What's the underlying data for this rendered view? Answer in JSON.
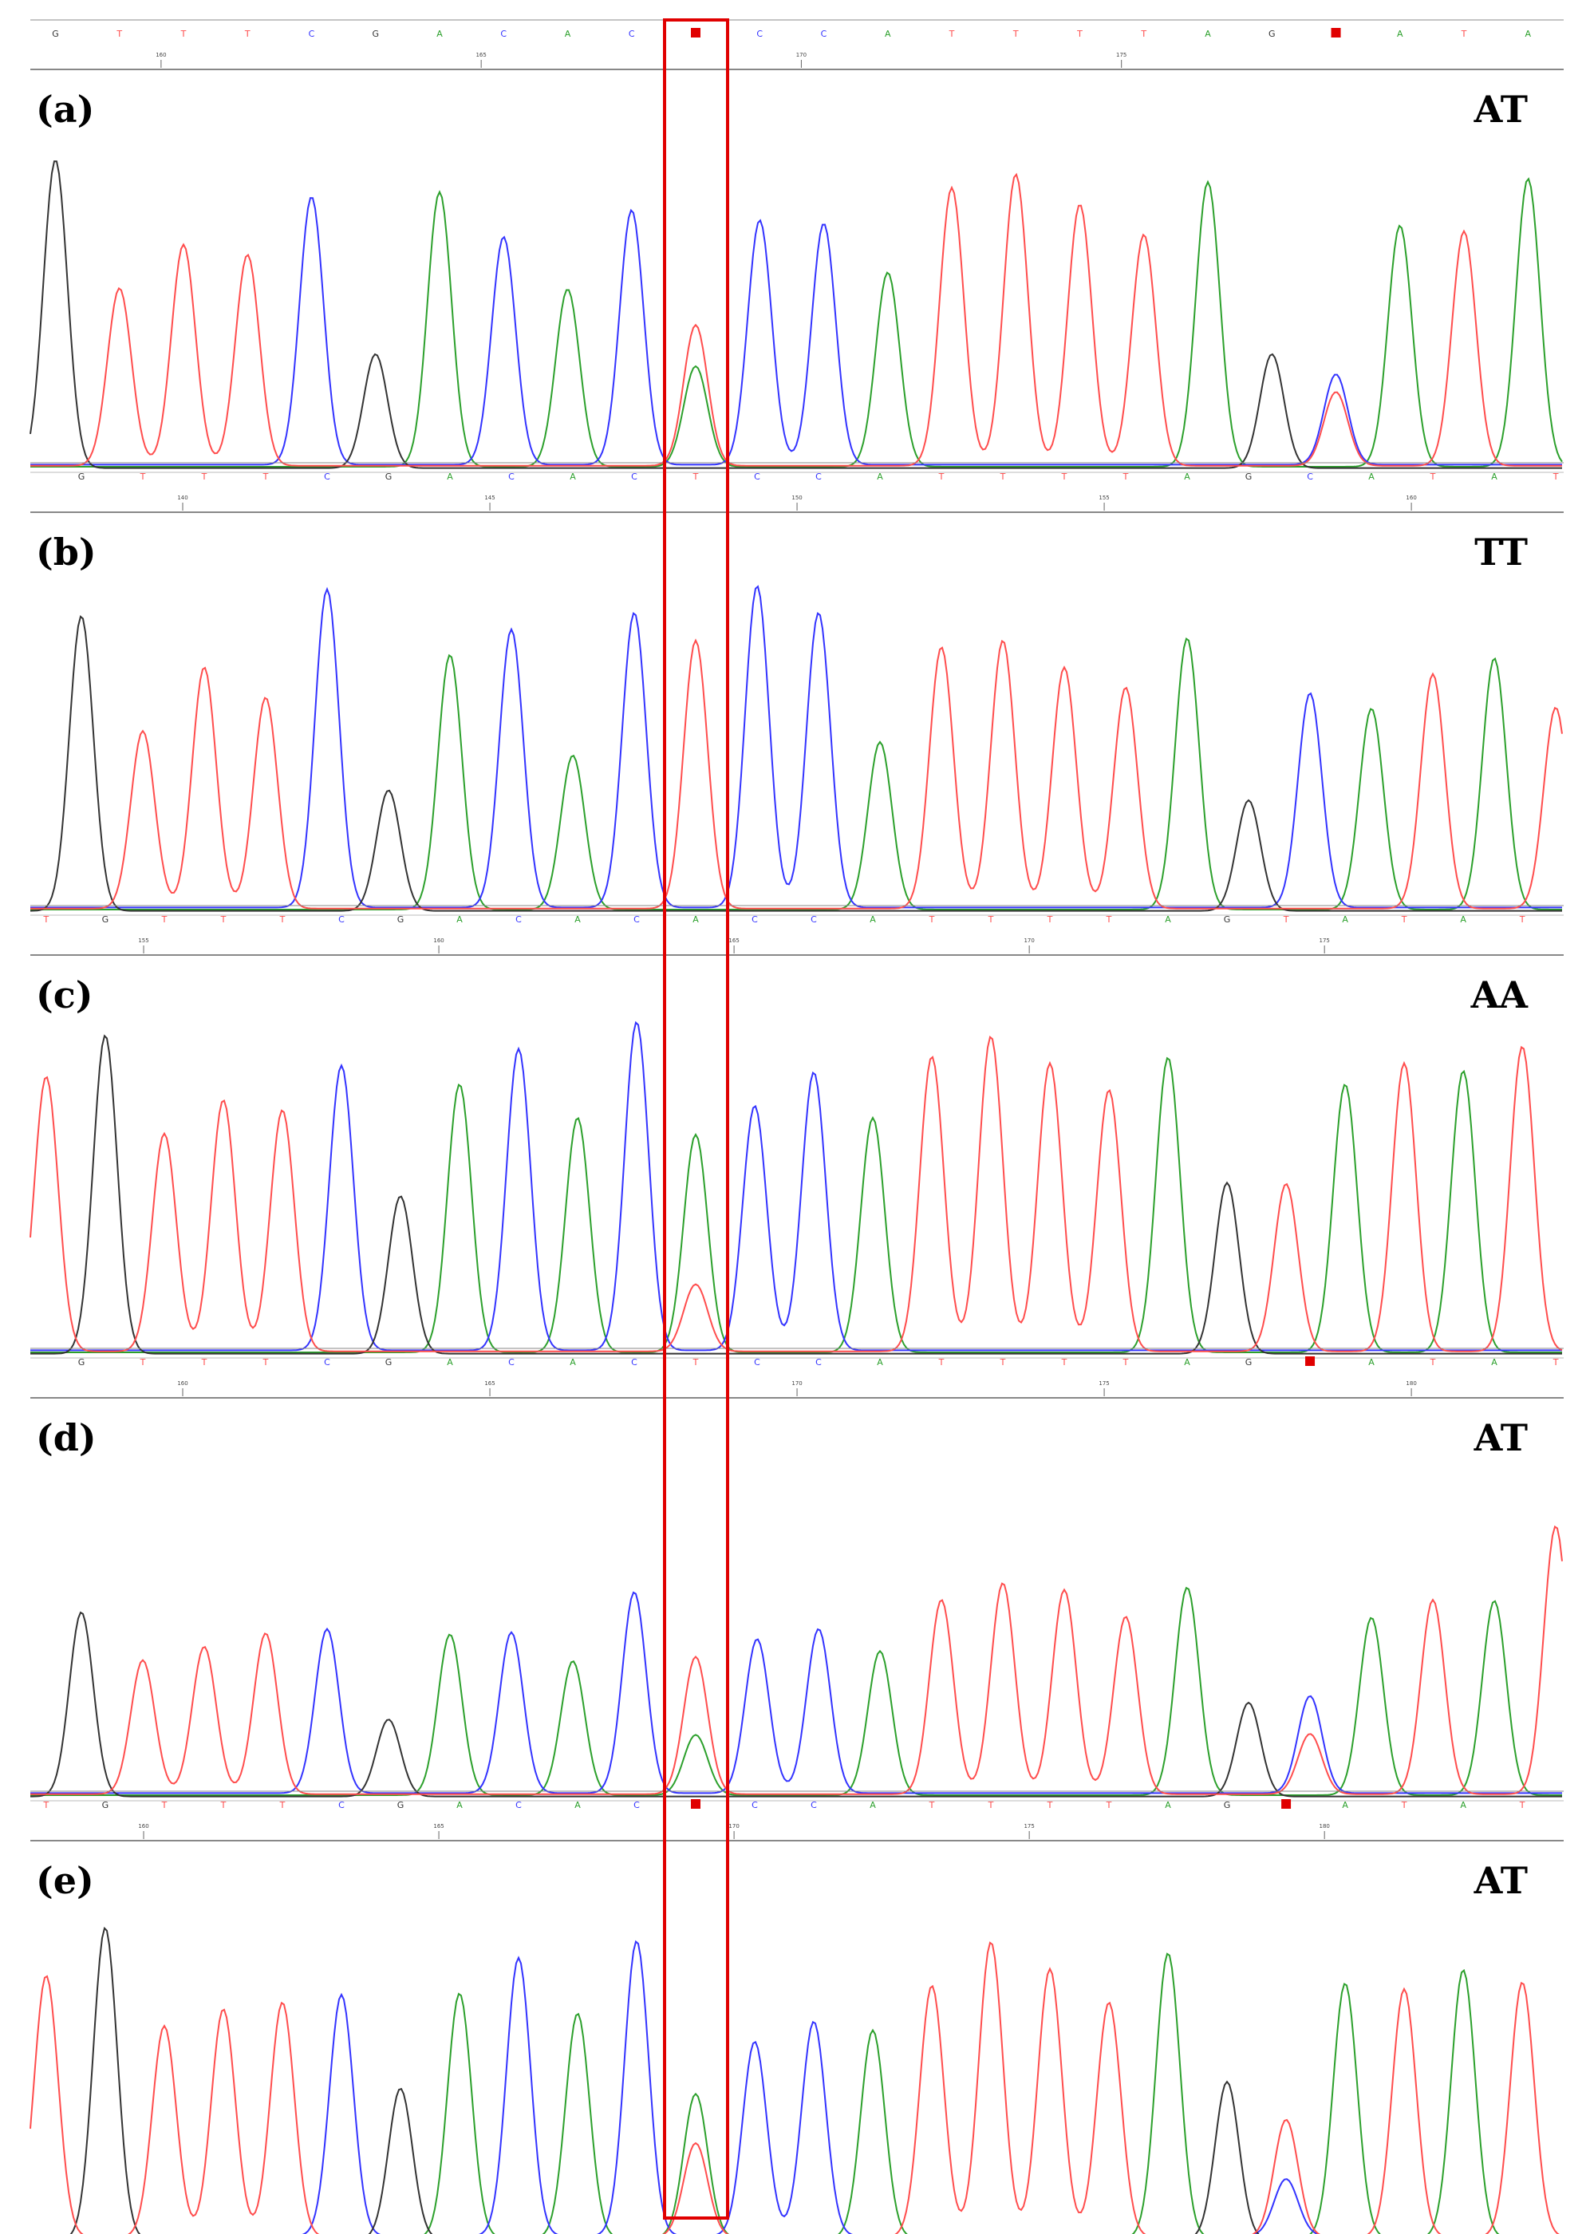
{
  "colors": {
    "A": "#2ca02c",
    "C": "#3333ff",
    "G": "#333333",
    "T": "#ff4d4d",
    "N": "#e00000",
    "highlight": "#e00000"
  },
  "highlight_box": {
    "label": "snp-highlight"
  },
  "panels": [
    {
      "label": "(a)",
      "genotype": "AT",
      "bases": [
        "G",
        "T",
        "T",
        "T",
        "C",
        "G",
        "A",
        "C",
        "A",
        "C",
        "N",
        "C",
        "C",
        "A",
        "T",
        "T",
        "T",
        "T",
        "A",
        "G",
        "N",
        "A",
        "T",
        "A"
      ],
      "ticks": [
        "160",
        "165",
        "170",
        "175"
      ],
      "peaks": [
        [
          "G",
          0.92
        ],
        [
          "T",
          0.53
        ],
        [
          "T",
          0.66
        ],
        [
          "T",
          0.63
        ],
        [
          "C",
          0.8
        ],
        [
          "G",
          0.34
        ],
        [
          "A",
          0.82
        ],
        [
          "C",
          0.68
        ],
        [
          "A",
          0.53
        ],
        [
          "C",
          0.76
        ],
        [
          "T",
          0.42
        ],
        [
          "C",
          0.73
        ],
        [
          "C",
          0.72
        ],
        [
          "A",
          0.58
        ],
        [
          "T",
          0.83
        ],
        [
          "T",
          0.87
        ],
        [
          "T",
          0.78
        ],
        [
          "T",
          0.69
        ],
        [
          "A",
          0.85
        ],
        [
          "G",
          0.34
        ],
        [
          "C",
          0.27
        ],
        [
          "A",
          0.72
        ],
        [
          "T",
          0.7
        ],
        [
          "A",
          0.86
        ]
      ],
      "secondary": [
        [
          "A",
          10,
          0.3
        ],
        [
          "T",
          20,
          0.22
        ]
      ]
    },
    {
      "label": "(b)",
      "genotype": "TT",
      "bases": [
        "G",
        "T",
        "T",
        "T",
        "C",
        "G",
        "A",
        "C",
        "A",
        "C",
        "T",
        "C",
        "C",
        "A",
        "T",
        "T",
        "T",
        "T",
        "A",
        "G",
        "C",
        "A",
        "T",
        "A",
        "T"
      ],
      "ticks": [
        "140",
        "145",
        "150",
        "155",
        "160"
      ],
      "peaks": [
        [
          "G",
          0.88
        ],
        [
          "T",
          0.53
        ],
        [
          "T",
          0.72
        ],
        [
          "T",
          0.63
        ],
        [
          "C",
          0.95
        ],
        [
          "G",
          0.36
        ],
        [
          "A",
          0.76
        ],
        [
          "C",
          0.83
        ],
        [
          "A",
          0.46
        ],
        [
          "C",
          0.88
        ],
        [
          "T",
          0.8
        ],
        [
          "C",
          0.96
        ],
        [
          "C",
          0.88
        ],
        [
          "A",
          0.5
        ],
        [
          "T",
          0.78
        ],
        [
          "T",
          0.8
        ],
        [
          "T",
          0.72
        ],
        [
          "T",
          0.66
        ],
        [
          "A",
          0.81
        ],
        [
          "G",
          0.33
        ],
        [
          "C",
          0.64
        ],
        [
          "A",
          0.6
        ],
        [
          "T",
          0.7
        ],
        [
          "A",
          0.75
        ],
        [
          "T",
          0.6
        ]
      ],
      "secondary": []
    },
    {
      "label": "(c)",
      "genotype": "AA",
      "bases": [
        "T",
        "G",
        "T",
        "T",
        "T",
        "C",
        "G",
        "A",
        "C",
        "A",
        "C",
        "A",
        "C",
        "C",
        "A",
        "T",
        "T",
        "T",
        "T",
        "A",
        "G",
        "T",
        "A",
        "T",
        "A",
        "T"
      ],
      "ticks": [
        "155",
        "160",
        "165",
        "170",
        "175"
      ],
      "peaks": [
        [
          "T",
          0.82
        ],
        [
          "G",
          0.95
        ],
        [
          "T",
          0.65
        ],
        [
          "T",
          0.75
        ],
        [
          "T",
          0.72
        ],
        [
          "C",
          0.85
        ],
        [
          "G",
          0.47
        ],
        [
          "A",
          0.8
        ],
        [
          "C",
          0.9
        ],
        [
          "A",
          0.7
        ],
        [
          "C",
          0.98
        ],
        [
          "A",
          0.65
        ],
        [
          "C",
          0.73
        ],
        [
          "C",
          0.83
        ],
        [
          "A",
          0.7
        ],
        [
          "T",
          0.88
        ],
        [
          "T",
          0.94
        ],
        [
          "T",
          0.86
        ],
        [
          "T",
          0.78
        ],
        [
          "A",
          0.88
        ],
        [
          "G",
          0.51
        ],
        [
          "T",
          0.5
        ],
        [
          "A",
          0.8
        ],
        [
          "T",
          0.86
        ],
        [
          "A",
          0.84
        ],
        [
          "T",
          0.91
        ]
      ],
      "secondary": [
        [
          "T",
          11,
          0.2
        ]
      ]
    },
    {
      "label": "(d)",
      "genotype": "AT",
      "bases": [
        "G",
        "T",
        "T",
        "T",
        "C",
        "G",
        "A",
        "C",
        "A",
        "C",
        "T",
        "C",
        "C",
        "A",
        "T",
        "T",
        "T",
        "T",
        "A",
        "G",
        "N",
        "A",
        "T",
        "A",
        "T"
      ],
      "ticks": [
        "160",
        "165",
        "170",
        "175",
        "180"
      ],
      "peaks": [
        [
          "G",
          0.55
        ],
        [
          "T",
          0.4
        ],
        [
          "T",
          0.44
        ],
        [
          "T",
          0.48
        ],
        [
          "C",
          0.49
        ],
        [
          "G",
          0.23
        ],
        [
          "A",
          0.48
        ],
        [
          "C",
          0.48
        ],
        [
          "A",
          0.4
        ],
        [
          "C",
          0.6
        ],
        [
          "T",
          0.41
        ],
        [
          "C",
          0.46
        ],
        [
          "C",
          0.49
        ],
        [
          "A",
          0.43
        ],
        [
          "T",
          0.58
        ],
        [
          "T",
          0.63
        ],
        [
          "T",
          0.61
        ],
        [
          "T",
          0.53
        ],
        [
          "A",
          0.62
        ],
        [
          "G",
          0.28
        ],
        [
          "C",
          0.29
        ],
        [
          "A",
          0.53
        ],
        [
          "T",
          0.58
        ],
        [
          "A",
          0.58
        ],
        [
          "T",
          0.8
        ]
      ],
      "secondary": [
        [
          "A",
          10,
          0.18
        ],
        [
          "T",
          20,
          0.18
        ]
      ]
    },
    {
      "label": "(e)",
      "genotype": "AT",
      "bases": [
        "T",
        "G",
        "T",
        "T",
        "T",
        "C",
        "G",
        "A",
        "C",
        "A",
        "C",
        "N",
        "C",
        "C",
        "A",
        "T",
        "T",
        "T",
        "T",
        "A",
        "G",
        "N",
        "A",
        "T",
        "A",
        "T"
      ],
      "ticks": [
        "160",
        "165",
        "170",
        "175",
        "180"
      ],
      "peaks": [
        [
          "T",
          0.78
        ],
        [
          "G",
          0.93
        ],
        [
          "T",
          0.63
        ],
        [
          "T",
          0.68
        ],
        [
          "T",
          0.7
        ],
        [
          "C",
          0.72
        ],
        [
          "G",
          0.45
        ],
        [
          "A",
          0.73
        ],
        [
          "C",
          0.83
        ],
        [
          "A",
          0.67
        ],
        [
          "C",
          0.88
        ],
        [
          "A",
          0.43
        ],
        [
          "C",
          0.58
        ],
        [
          "C",
          0.64
        ],
        [
          "A",
          0.62
        ],
        [
          "T",
          0.75
        ],
        [
          "T",
          0.88
        ],
        [
          "T",
          0.8
        ],
        [
          "T",
          0.7
        ],
        [
          "A",
          0.85
        ],
        [
          "G",
          0.47
        ],
        [
          "T",
          0.35
        ],
        [
          "A",
          0.76
        ],
        [
          "T",
          0.74
        ],
        [
          "A",
          0.8
        ],
        [
          "T",
          0.76
        ]
      ],
      "secondary": [
        [
          "T",
          11,
          0.28
        ],
        [
          "C",
          21,
          0.17
        ]
      ]
    }
  ]
}
